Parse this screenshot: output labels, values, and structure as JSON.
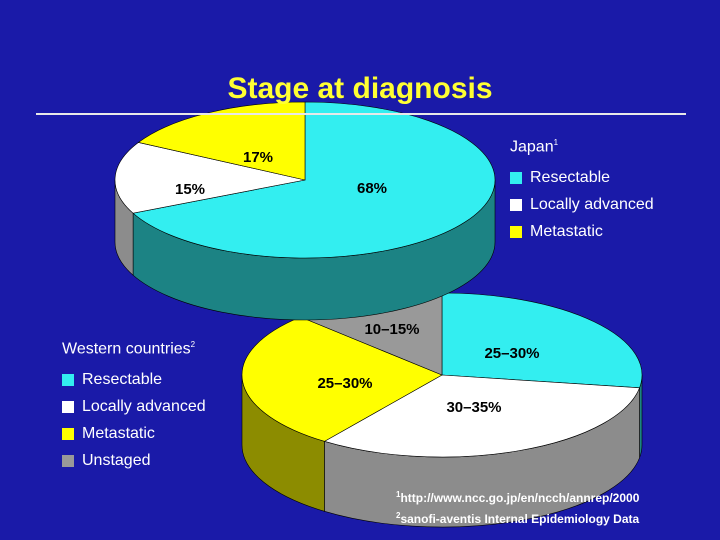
{
  "title": "Stage at diagnosis",
  "colors": {
    "background": "#1a1aa8",
    "resectable": "#33eef0",
    "locally_advanced": "#ffffff",
    "metastatic": "#ffff00",
    "unstaged": "#999999"
  },
  "chart_data": [
    {
      "type": "pie",
      "name": "Japan",
      "name_note": "1",
      "categories": [
        "Resectable",
        "Locally advanced",
        "Metastatic"
      ],
      "values": [
        68,
        15,
        17
      ],
      "data_labels": [
        "68%",
        "15%",
        "17%"
      ],
      "legend": "right"
    },
    {
      "type": "pie",
      "name": "Western countries",
      "name_note": "2",
      "categories": [
        "Resectable",
        "Locally advanced",
        "Metastatic",
        "Unstaged"
      ],
      "values": [
        27.5,
        32.5,
        27.5,
        12.5
      ],
      "data_labels": [
        "25–30%",
        "30–35%",
        "25–30%",
        "10–15%"
      ],
      "legend": "left"
    }
  ],
  "footnotes": [
    {
      "mark": "1",
      "text": "http://www.ncc.go.jp/en/ncch/annrep/2000"
    },
    {
      "mark": "2",
      "text": "sanofi-aventis Internal Epidemiology Data"
    }
  ]
}
